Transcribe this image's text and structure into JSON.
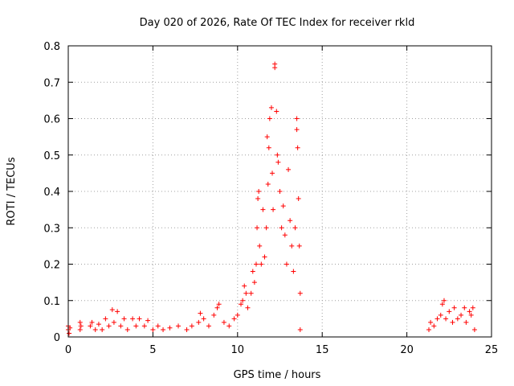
{
  "chart_data": {
    "type": "scatter",
    "title": "Day 020 of 2026, Rate Of TEC Index for receiver rkld",
    "xlabel": "GPS time / hours",
    "ylabel": "ROTI / TECUs",
    "xlim": [
      0,
      25
    ],
    "ylim": [
      0,
      0.8
    ],
    "xticks": [
      "0",
      "5",
      "10",
      "15",
      "20",
      "25"
    ],
    "yticks": [
      "0",
      "0.1",
      "0.2",
      "0.3",
      "0.4",
      "0.5",
      "0.6",
      "0.7",
      "0.8"
    ],
    "grid": true,
    "marker": "plus",
    "color": "#ff0000",
    "series": [
      {
        "points": [
          [
            0.0,
            0.02
          ],
          [
            0.0,
            0.03
          ],
          [
            0.05,
            0.01
          ],
          [
            0.1,
            0.025
          ],
          [
            0.7,
            0.02
          ],
          [
            0.7,
            0.04
          ],
          [
            0.75,
            0.03
          ],
          [
            1.3,
            0.03
          ],
          [
            1.4,
            0.04
          ],
          [
            1.6,
            0.02
          ],
          [
            1.8,
            0.035
          ],
          [
            2.0,
            0.02
          ],
          [
            2.2,
            0.05
          ],
          [
            2.4,
            0.03
          ],
          [
            2.6,
            0.075
          ],
          [
            2.7,
            0.04
          ],
          [
            2.9,
            0.07
          ],
          [
            3.1,
            0.03
          ],
          [
            3.3,
            0.05
          ],
          [
            3.5,
            0.02
          ],
          [
            3.8,
            0.05
          ],
          [
            4.0,
            0.03
          ],
          [
            4.2,
            0.05
          ],
          [
            4.5,
            0.03
          ],
          [
            4.7,
            0.045
          ],
          [
            5.0,
            0.02
          ],
          [
            5.3,
            0.03
          ],
          [
            5.6,
            0.02
          ],
          [
            6.0,
            0.025
          ],
          [
            6.5,
            0.03
          ],
          [
            7.0,
            0.02
          ],
          [
            7.3,
            0.03
          ],
          [
            7.7,
            0.04
          ],
          [
            7.8,
            0.065
          ],
          [
            8.0,
            0.05
          ],
          [
            8.3,
            0.03
          ],
          [
            8.6,
            0.06
          ],
          [
            8.8,
            0.08
          ],
          [
            8.9,
            0.09
          ],
          [
            9.2,
            0.04
          ],
          [
            9.5,
            0.03
          ],
          [
            9.8,
            0.05
          ],
          [
            10.0,
            0.06
          ],
          [
            10.2,
            0.09
          ],
          [
            10.3,
            0.1
          ],
          [
            10.4,
            0.14
          ],
          [
            10.5,
            0.12
          ],
          [
            10.6,
            0.08
          ],
          [
            10.8,
            0.12
          ],
          [
            10.9,
            0.18
          ],
          [
            11.0,
            0.15
          ],
          [
            11.1,
            0.2
          ],
          [
            11.15,
            0.3
          ],
          [
            11.2,
            0.38
          ],
          [
            11.25,
            0.4
          ],
          [
            11.3,
            0.25
          ],
          [
            11.4,
            0.2
          ],
          [
            11.5,
            0.35
          ],
          [
            11.6,
            0.22
          ],
          [
            11.7,
            0.3
          ],
          [
            11.75,
            0.55
          ],
          [
            11.8,
            0.42
          ],
          [
            11.85,
            0.52
          ],
          [
            11.9,
            0.6
          ],
          [
            12.0,
            0.63
          ],
          [
            12.05,
            0.45
          ],
          [
            12.1,
            0.35
          ],
          [
            12.2,
            0.75
          ],
          [
            12.2,
            0.74
          ],
          [
            12.3,
            0.62
          ],
          [
            12.35,
            0.5
          ],
          [
            12.4,
            0.48
          ],
          [
            12.5,
            0.4
          ],
          [
            12.6,
            0.3
          ],
          [
            12.7,
            0.36
          ],
          [
            12.8,
            0.28
          ],
          [
            12.9,
            0.2
          ],
          [
            13.0,
            0.46
          ],
          [
            13.1,
            0.32
          ],
          [
            13.2,
            0.25
          ],
          [
            13.3,
            0.18
          ],
          [
            13.4,
            0.3
          ],
          [
            13.5,
            0.6
          ],
          [
            13.5,
            0.57
          ],
          [
            13.55,
            0.52
          ],
          [
            13.6,
            0.38
          ],
          [
            13.65,
            0.25
          ],
          [
            13.7,
            0.12
          ],
          [
            13.7,
            0.02
          ],
          [
            21.3,
            0.02
          ],
          [
            21.4,
            0.04
          ],
          [
            21.6,
            0.03
          ],
          [
            21.8,
            0.05
          ],
          [
            22.0,
            0.06
          ],
          [
            22.1,
            0.09
          ],
          [
            22.2,
            0.1
          ],
          [
            22.3,
            0.05
          ],
          [
            22.5,
            0.07
          ],
          [
            22.7,
            0.04
          ],
          [
            22.8,
            0.08
          ],
          [
            23.0,
            0.05
          ],
          [
            23.2,
            0.06
          ],
          [
            23.4,
            0.08
          ],
          [
            23.5,
            0.04
          ],
          [
            23.7,
            0.07
          ],
          [
            23.8,
            0.06
          ],
          [
            23.9,
            0.08
          ],
          [
            24.0,
            0.02
          ]
        ]
      }
    ]
  }
}
